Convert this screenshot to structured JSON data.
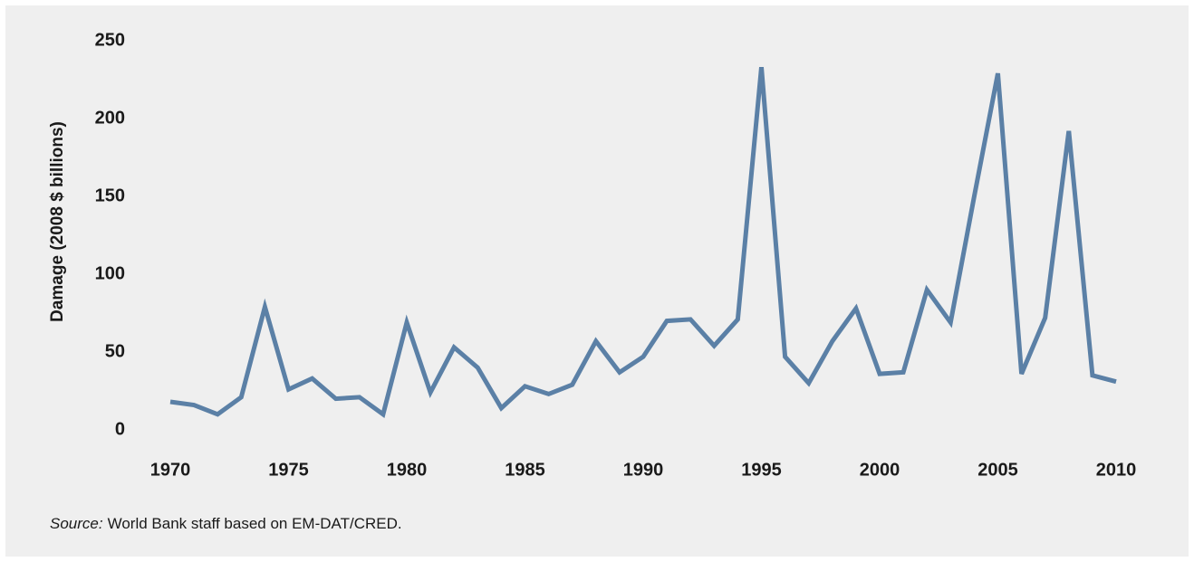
{
  "chart_data": {
    "type": "line",
    "ylabel": "Damage (2008 $ billions)",
    "x": [
      1970,
      1971,
      1972,
      1973,
      1974,
      1975,
      1976,
      1977,
      1978,
      1979,
      1980,
      1981,
      1982,
      1983,
      1984,
      1985,
      1986,
      1987,
      1988,
      1989,
      1990,
      1991,
      1992,
      1993,
      1994,
      1995,
      1996,
      1997,
      1998,
      1999,
      2000,
      2001,
      2002,
      2003,
      2004,
      2005,
      2006,
      2007,
      2008,
      2009,
      2010
    ],
    "values": [
      18,
      16,
      10,
      21,
      79,
      26,
      33,
      20,
      21,
      10,
      69,
      24,
      53,
      40,
      14,
      28,
      23,
      29,
      57,
      37,
      47,
      70,
      71,
      54,
      71,
      233,
      47,
      30,
      57,
      78,
      36,
      37,
      90,
      69,
      150,
      229,
      36,
      72,
      192,
      35,
      31
    ],
    "color": "#5b80a6",
    "xlim": [
      1970,
      2010
    ],
    "xticks": [
      1970,
      1975,
      1980,
      1985,
      1990,
      1995,
      2000,
      2005,
      2010
    ],
    "ylim": [
      0,
      250
    ],
    "yticks": [
      0,
      50,
      100,
      150,
      200,
      250
    ],
    "grid": false,
    "note_label": "Source:",
    "note": "World Bank staff based on EM-DAT/CRED."
  }
}
